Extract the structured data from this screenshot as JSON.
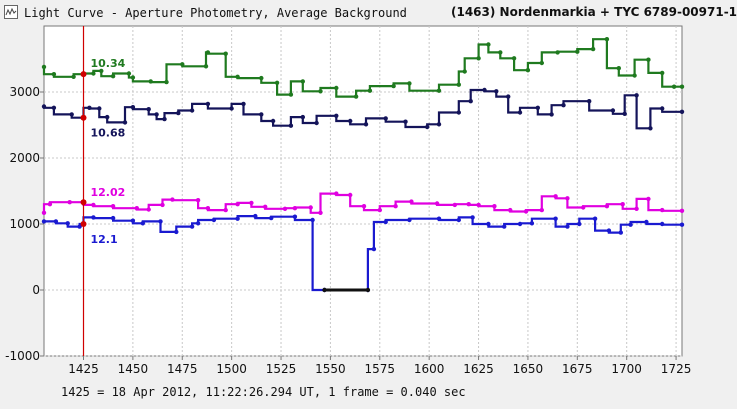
{
  "window": {
    "icon": "light-curve-icon",
    "title": "Light Curve - Aperture Photometry, Average Background",
    "object": "(1463) Nordenmarkia + TYC 6789-00971-1"
  },
  "status": {
    "text": "1425 = 18 Apr 2012, 11:22:26.294 UT, 1 frame = 0.040 sec"
  },
  "chart_data": {
    "type": "line",
    "xlim": [
      1405,
      1728
    ],
    "ylim": [
      -1000,
      4000
    ],
    "x_ticks": [
      1425,
      1450,
      1475,
      1500,
      1525,
      1550,
      1575,
      1600,
      1625,
      1650,
      1675,
      1700,
      1725
    ],
    "y_ticks": [
      -1000,
      0,
      1000,
      2000,
      3000
    ],
    "grid": true,
    "cursor_x": 1425,
    "series": [
      {
        "color": "#1f7a1f",
        "readout": "10.34",
        "points": [
          [
            1405,
            3380
          ],
          [
            1410,
            3270
          ],
          [
            1420,
            3230
          ],
          [
            1425,
            3270
          ],
          [
            1430,
            3280
          ],
          [
            1434,
            3320
          ],
          [
            1440,
            3240
          ],
          [
            1448,
            3280
          ],
          [
            1450,
            3220
          ],
          [
            1459,
            3160
          ],
          [
            1467,
            3150
          ],
          [
            1475,
            3420
          ],
          [
            1487,
            3390
          ],
          [
            1488,
            3600
          ],
          [
            1497,
            3580
          ],
          [
            1503,
            3230
          ],
          [
            1515,
            3210
          ],
          [
            1523,
            3140
          ],
          [
            1530,
            2960
          ],
          [
            1536,
            3160
          ],
          [
            1545,
            3010
          ],
          [
            1553,
            3060
          ],
          [
            1563,
            2930
          ],
          [
            1570,
            3020
          ],
          [
            1582,
            3090
          ],
          [
            1590,
            3130
          ],
          [
            1605,
            3020
          ],
          [
            1615,
            3110
          ],
          [
            1618,
            3310
          ],
          [
            1625,
            3510
          ],
          [
            1630,
            3720
          ],
          [
            1636,
            3600
          ],
          [
            1643,
            3510
          ],
          [
            1650,
            3330
          ],
          [
            1657,
            3440
          ],
          [
            1665,
            3600
          ],
          [
            1675,
            3610
          ],
          [
            1683,
            3650
          ],
          [
            1690,
            3800
          ],
          [
            1696,
            3360
          ],
          [
            1704,
            3250
          ],
          [
            1711,
            3490
          ],
          [
            1718,
            3290
          ],
          [
            1724,
            3080
          ],
          [
            1728,
            3080
          ]
        ]
      },
      {
        "color": "#14145a",
        "readout": "10.68",
        "points": [
          [
            1405,
            2780
          ],
          [
            1410,
            2760
          ],
          [
            1419,
            2660
          ],
          [
            1425,
            2610
          ],
          [
            1428,
            2760
          ],
          [
            1433,
            2750
          ],
          [
            1437,
            2620
          ],
          [
            1446,
            2540
          ],
          [
            1450,
            2770
          ],
          [
            1458,
            2740
          ],
          [
            1462,
            2660
          ],
          [
            1466,
            2590
          ],
          [
            1473,
            2680
          ],
          [
            1480,
            2720
          ],
          [
            1488,
            2820
          ],
          [
            1500,
            2750
          ],
          [
            1506,
            2820
          ],
          [
            1515,
            2660
          ],
          [
            1521,
            2560
          ],
          [
            1530,
            2490
          ],
          [
            1536,
            2620
          ],
          [
            1543,
            2530
          ],
          [
            1553,
            2640
          ],
          [
            1560,
            2560
          ],
          [
            1568,
            2510
          ],
          [
            1578,
            2600
          ],
          [
            1588,
            2550
          ],
          [
            1599,
            2470
          ],
          [
            1605,
            2510
          ],
          [
            1615,
            2690
          ],
          [
            1621,
            2860
          ],
          [
            1628,
            3030
          ],
          [
            1634,
            3010
          ],
          [
            1640,
            2930
          ],
          [
            1646,
            2690
          ],
          [
            1655,
            2760
          ],
          [
            1662,
            2660
          ],
          [
            1668,
            2800
          ],
          [
            1681,
            2860
          ],
          [
            1693,
            2720
          ],
          [
            1699,
            2670
          ],
          [
            1705,
            2950
          ],
          [
            1712,
            2450
          ],
          [
            1718,
            2750
          ],
          [
            1728,
            2700
          ]
        ]
      },
      {
        "color": "#e000e0",
        "readout": "12.02",
        "points": [
          [
            1405,
            1170
          ],
          [
            1408,
            1300
          ],
          [
            1418,
            1330
          ],
          [
            1425,
            1330
          ],
          [
            1430,
            1290
          ],
          [
            1440,
            1270
          ],
          [
            1452,
            1240
          ],
          [
            1458,
            1220
          ],
          [
            1465,
            1290
          ],
          [
            1470,
            1370
          ],
          [
            1483,
            1360
          ],
          [
            1488,
            1240
          ],
          [
            1497,
            1210
          ],
          [
            1503,
            1300
          ],
          [
            1510,
            1320
          ],
          [
            1517,
            1260
          ],
          [
            1527,
            1230
          ],
          [
            1532,
            1240
          ],
          [
            1540,
            1250
          ],
          [
            1545,
            1170
          ],
          [
            1553,
            1460
          ],
          [
            1560,
            1440
          ],
          [
            1567,
            1270
          ],
          [
            1575,
            1210
          ],
          [
            1583,
            1270
          ],
          [
            1591,
            1340
          ],
          [
            1604,
            1310
          ],
          [
            1613,
            1290
          ],
          [
            1620,
            1300
          ],
          [
            1625,
            1290
          ],
          [
            1633,
            1270
          ],
          [
            1641,
            1210
          ],
          [
            1649,
            1190
          ],
          [
            1657,
            1210
          ],
          [
            1664,
            1420
          ],
          [
            1670,
            1390
          ],
          [
            1678,
            1250
          ],
          [
            1690,
            1270
          ],
          [
            1698,
            1300
          ],
          [
            1705,
            1230
          ],
          [
            1711,
            1380
          ],
          [
            1718,
            1210
          ],
          [
            1728,
            1200
          ]
        ]
      },
      {
        "color": "#1a1ad0",
        "readout": "12.1",
        "points": [
          [
            1405,
            1040
          ],
          [
            1411,
            1040
          ],
          [
            1417,
            1010
          ],
          [
            1423,
            960
          ],
          [
            1425,
            1000
          ],
          [
            1430,
            1100
          ],
          [
            1440,
            1090
          ],
          [
            1450,
            1050
          ],
          [
            1455,
            1010
          ],
          [
            1464,
            1040
          ],
          [
            1472,
            880
          ],
          [
            1480,
            960
          ],
          [
            1483,
            1010
          ],
          [
            1491,
            1060
          ],
          [
            1503,
            1080
          ],
          [
            1512,
            1120
          ],
          [
            1520,
            1090
          ],
          [
            1532,
            1110
          ],
          [
            1541,
            1060
          ],
          [
            1547,
            0
          ],
          [
            1569,
            0
          ],
          [
            1572,
            620
          ],
          [
            1578,
            1030
          ],
          [
            1590,
            1060
          ],
          [
            1605,
            1080
          ],
          [
            1615,
            1060
          ],
          [
            1622,
            1100
          ],
          [
            1630,
            1000
          ],
          [
            1638,
            960
          ],
          [
            1646,
            1000
          ],
          [
            1652,
            1010
          ],
          [
            1664,
            1080
          ],
          [
            1670,
            960
          ],
          [
            1676,
            1000
          ],
          [
            1684,
            1080
          ],
          [
            1691,
            900
          ],
          [
            1697,
            870
          ],
          [
            1702,
            990
          ],
          [
            1710,
            1030
          ],
          [
            1718,
            1000
          ],
          [
            1728,
            990
          ]
        ]
      },
      {
        "color": "#111111",
        "readout": "",
        "points": [
          [
            1547,
            0
          ],
          [
            1569,
            0
          ]
        ]
      }
    ]
  }
}
